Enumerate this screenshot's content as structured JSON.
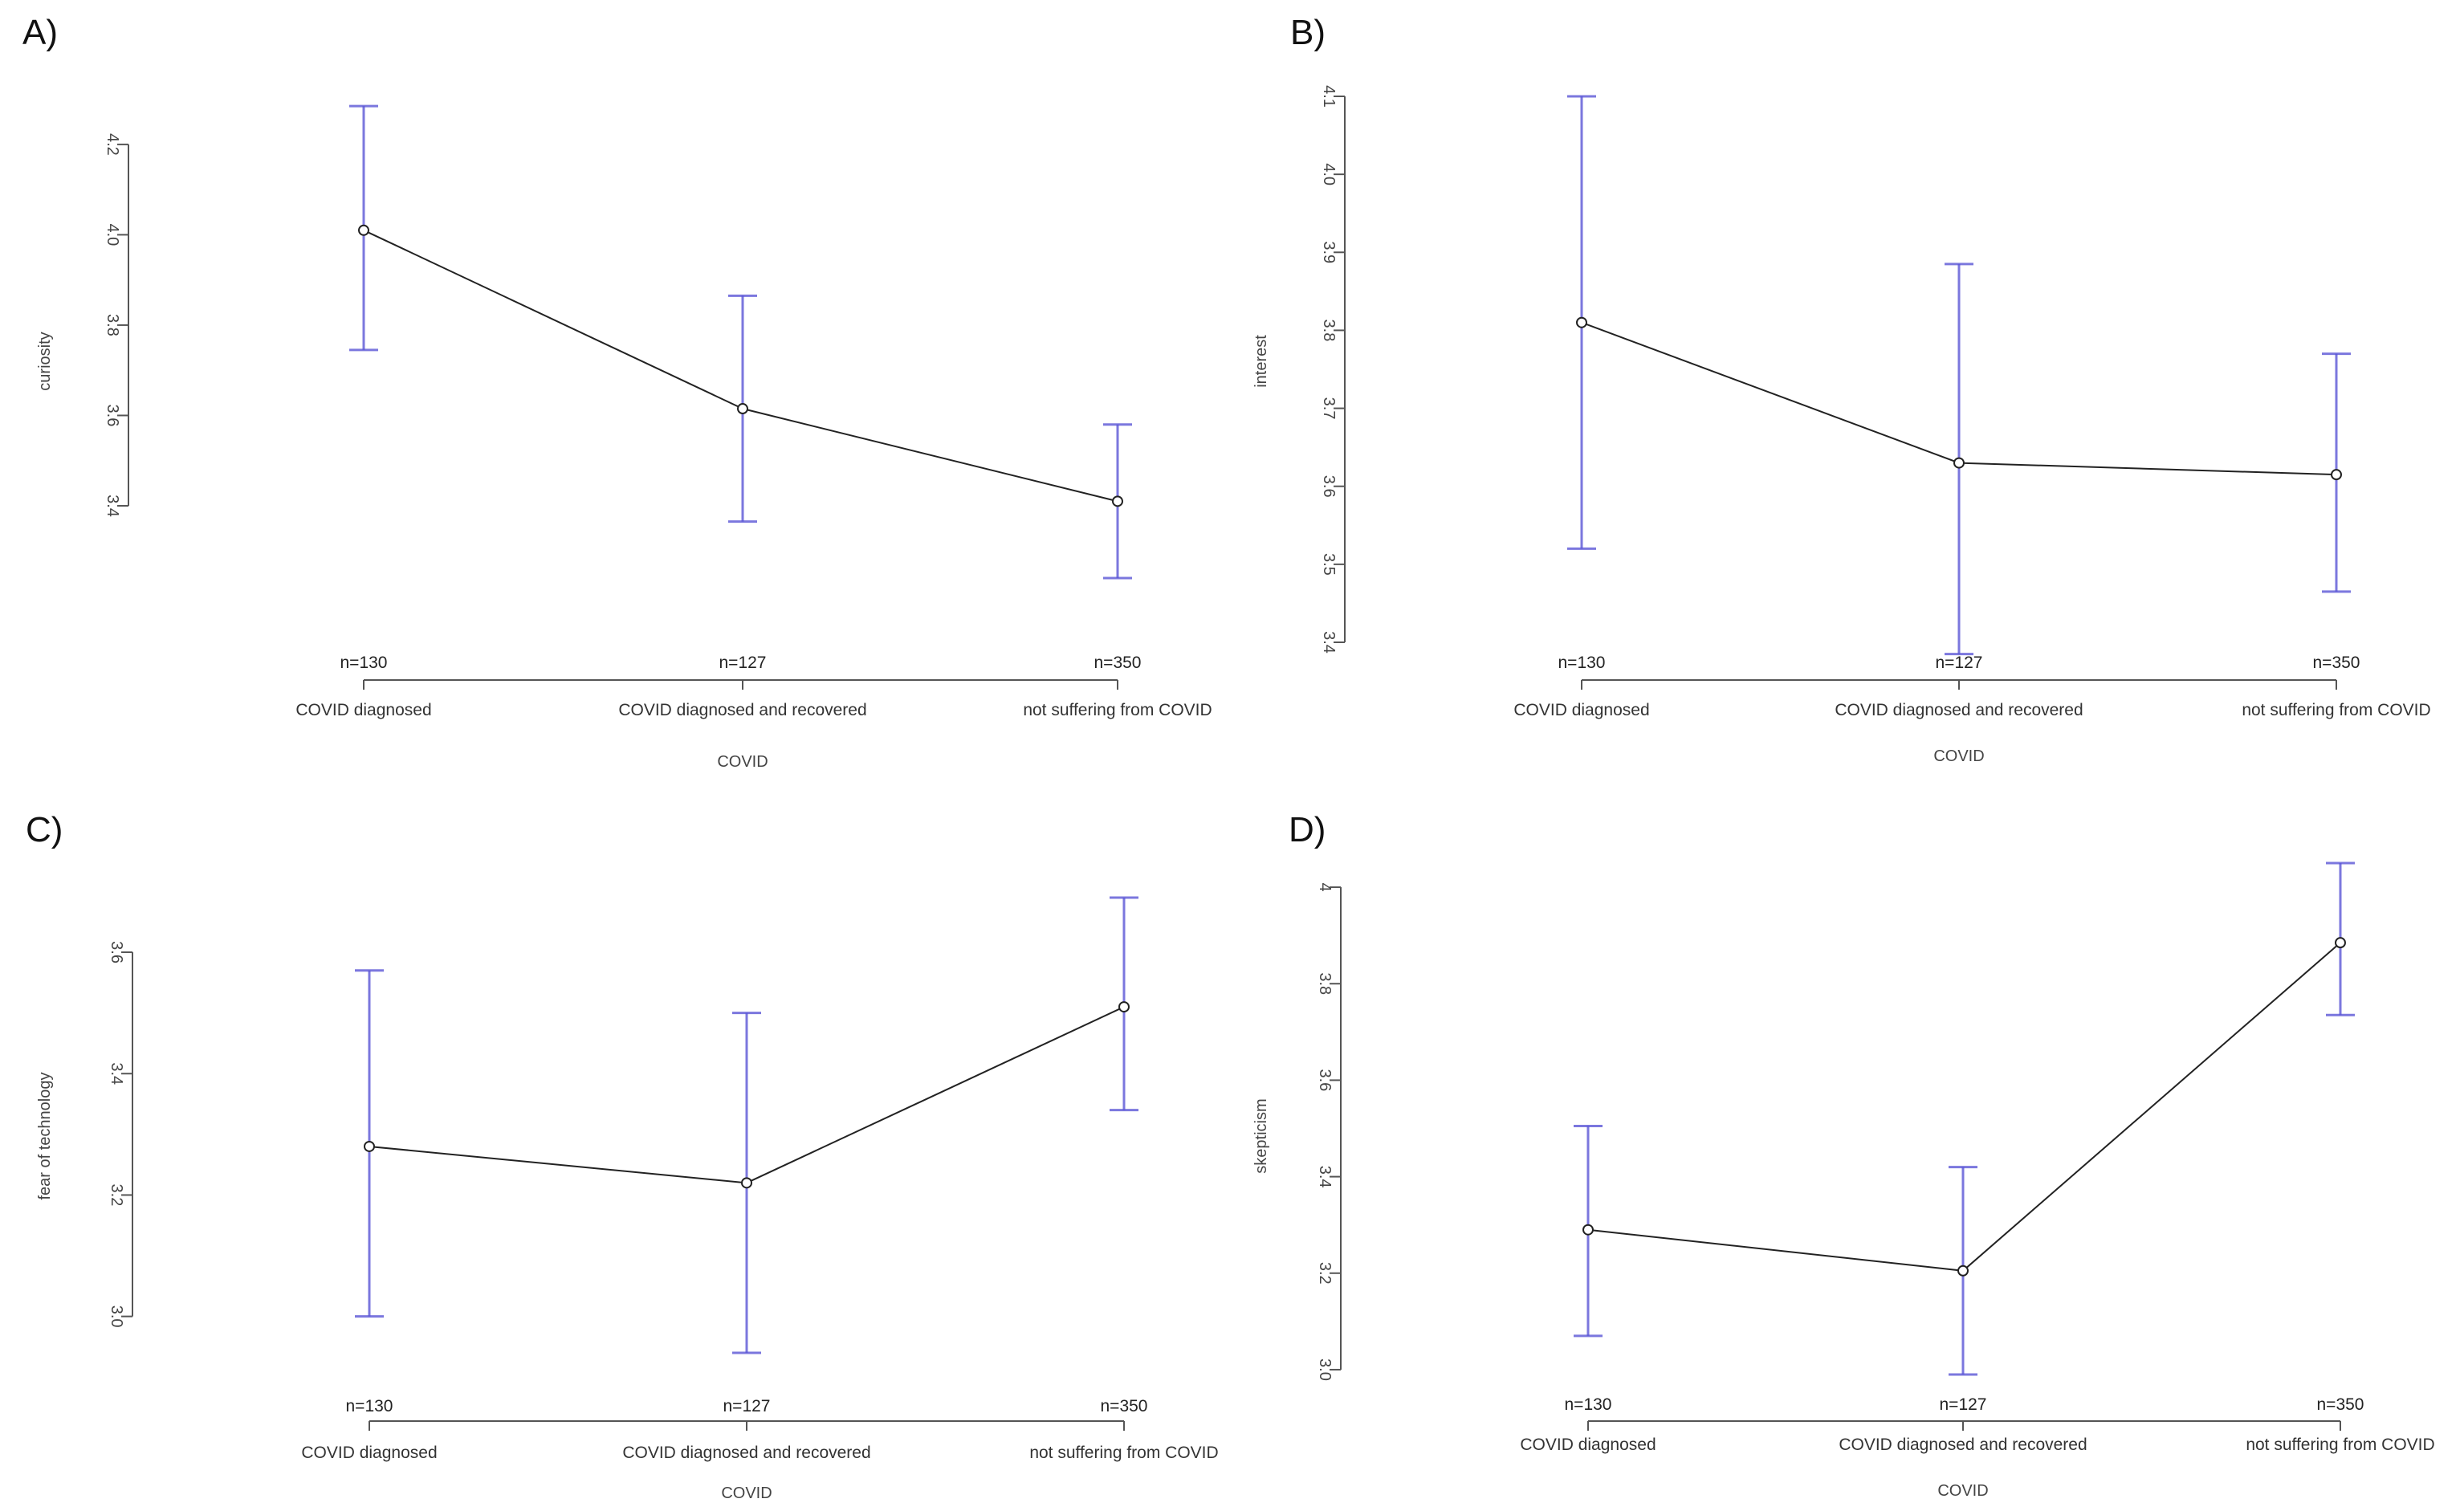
{
  "chart_data": [
    {
      "panel": "A)",
      "type": "line",
      "xlabel": "COVID",
      "ylabel": "curiosity",
      "categories": [
        "COVID diagnosed",
        "COVID diagnosed and recovered",
        "not suffering from COVID"
      ],
      "n_labels": [
        "n=130",
        "n=127",
        "n=350"
      ],
      "series": [
        {
          "values": [
            4.01,
            3.615,
            3.41
          ],
          "lower": [
            3.745,
            3.365,
            3.24
          ],
          "upper": [
            4.285,
            3.865,
            3.58
          ]
        }
      ],
      "ylim": [
        3.24,
        4.31
      ],
      "yticks": [
        3.4,
        3.6,
        3.8,
        4.0,
        4.2
      ],
      "ytick_labels": [
        "3.4",
        "3.6",
        "3.8",
        "4.0",
        "4.2"
      ]
    },
    {
      "panel": "B)",
      "type": "line",
      "xlabel": "COVID",
      "ylabel": "interest",
      "categories": [
        "COVID diagnosed",
        "COVID diagnosed and recovered",
        "not suffering from COVID"
      ],
      "n_labels": [
        "n=130",
        "n=127",
        "n=350"
      ],
      "series": [
        {
          "values": [
            3.81,
            3.63,
            3.615
          ],
          "lower": [
            3.52,
            3.385,
            3.465
          ],
          "upper": [
            4.1,
            3.885,
            3.77
          ]
        }
      ],
      "ylim": [
        3.4,
        4.1
      ],
      "yticks": [
        3.4,
        3.5,
        3.6,
        3.7,
        3.8,
        3.9,
        4.0,
        4.1
      ],
      "ytick_labels": [
        "3.4",
        "3.5",
        "3.6",
        "3.7",
        "3.8",
        "3.9",
        "4.0",
        "4.1"
      ]
    },
    {
      "panel": "C)",
      "type": "line",
      "xlabel": "COVID",
      "ylabel": "fear of technology",
      "categories": [
        "COVID diagnosed",
        "COVID diagnosed and recovered",
        "not suffering from COVID"
      ],
      "n_labels": [
        "n=130",
        "n=127",
        "n=350"
      ],
      "series": [
        {
          "values": [
            3.28,
            3.22,
            3.51
          ],
          "lower": [
            3.0,
            2.94,
            3.34
          ],
          "upper": [
            3.57,
            3.5,
            3.69
          ]
        }
      ],
      "ylim": [
        2.94,
        3.69
      ],
      "yticks": [
        3.0,
        3.2,
        3.4,
        3.6
      ],
      "ytick_labels": [
        "3.0",
        "3.2",
        "3.4",
        "3.6"
      ]
    },
    {
      "panel": "D)",
      "type": "line",
      "xlabel": "COVID",
      "ylabel": "skepticism",
      "categories": [
        "COVID diagnosed",
        "COVID diagnosed and recovered",
        "not suffering from COVID"
      ],
      "n_labels": [
        "n=130",
        "n=127",
        "n=350"
      ],
      "series": [
        {
          "values": [
            3.29,
            3.205,
            3.885
          ],
          "lower": [
            3.07,
            2.99,
            3.735
          ],
          "upper": [
            3.505,
            3.42,
            4.05
          ]
        }
      ],
      "ylim": [
        2.96,
        4.05
      ],
      "yticks": [
        3.0,
        3.2,
        3.4,
        3.6,
        3.8,
        4.0
      ],
      "ytick_labels": [
        "3.0",
        "3.2",
        "3.4",
        "3.6",
        "3.8",
        "4"
      ]
    }
  ]
}
